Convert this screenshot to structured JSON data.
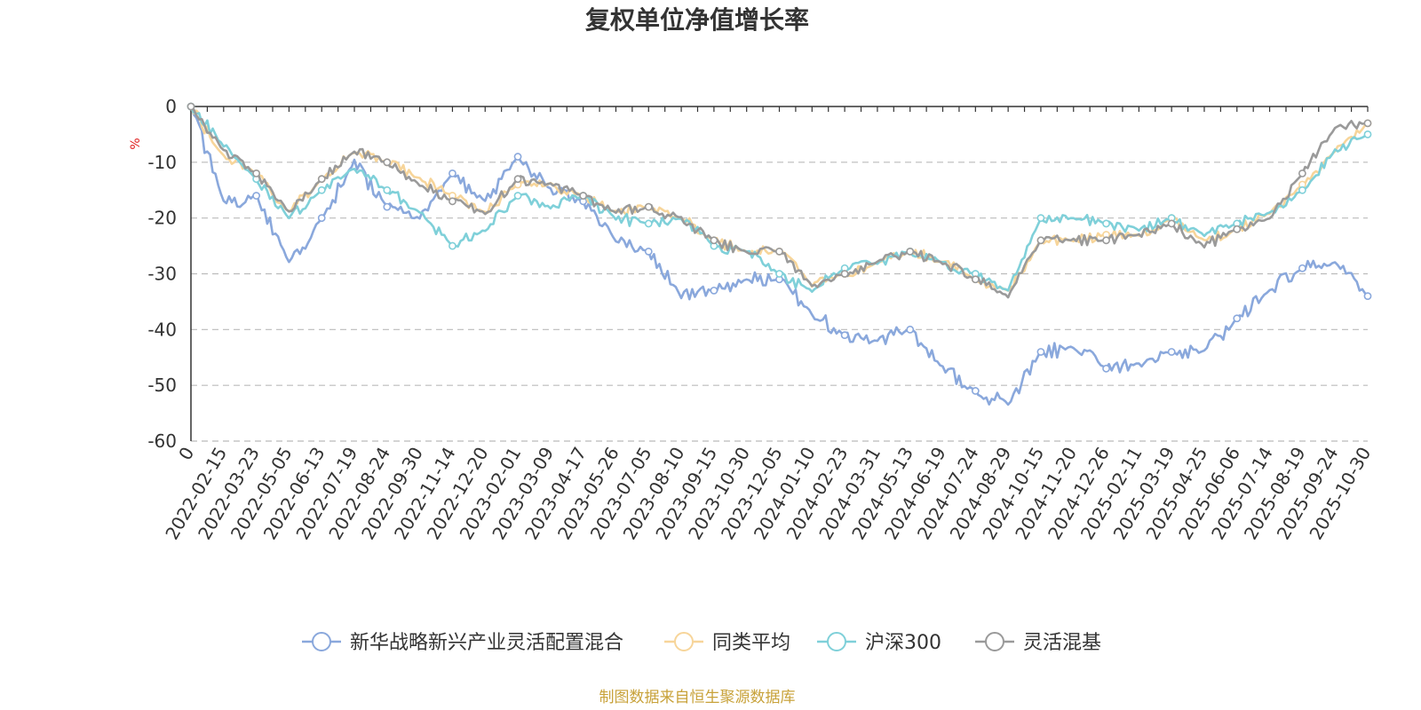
{
  "chart_data": {
    "type": "line",
    "title": "复权单位净值增长率",
    "ylabel": "%",
    "ylim": [
      -60,
      0
    ],
    "yticks": [
      0,
      -10,
      -20,
      -30,
      -40,
      -50,
      -60
    ],
    "categories": [
      "0",
      "2022-02-15",
      "2022-03-23",
      "2022-05-05",
      "2022-06-13",
      "2022-07-19",
      "2022-08-24",
      "2022-09-30",
      "2022-11-14",
      "2022-12-20",
      "2023-02-01",
      "2023-03-09",
      "2023-04-17",
      "2023-05-26",
      "2023-07-05",
      "2023-08-10",
      "2023-09-15",
      "2023-10-30",
      "2023-12-05",
      "2024-01-10",
      "2024-02-23",
      "2024-03-31",
      "2024-05-13",
      "2024-06-19",
      "2024-07-24",
      "2024-08-29",
      "2024-10-15",
      "2024-11-20",
      "2024-12-26",
      "2025-02-11",
      "2025-03-19",
      "2025-04-25",
      "2025-06-06",
      "2025-07-14",
      "2025-08-19",
      "2025-09-24",
      "2025-10-30"
    ],
    "legend_position": "bottom",
    "grid": true,
    "series": [
      {
        "name": "新华战略新兴产业灵活配置混合",
        "color": "#8aa8dc",
        "values": [
          0,
          -17,
          -16,
          -28,
          -20,
          -10,
          -18,
          -20,
          -12,
          -17,
          -9,
          -15,
          -17,
          -24,
          -26,
          -34,
          -33,
          -31,
          -31,
          -37,
          -41,
          -42,
          -40,
          -47,
          -51,
          -53,
          -44,
          -43,
          -47,
          -46,
          -44,
          -44,
          -38,
          -33,
          -29,
          -28,
          -34
        ]
      },
      {
        "name": "同类平均",
        "color": "#f7d59a",
        "values": [
          0,
          -9,
          -12,
          -19,
          -13,
          -8,
          -10,
          -13,
          -16,
          -19,
          -14,
          -14,
          -16,
          -19,
          -18,
          -20,
          -24,
          -26,
          -26,
          -32,
          -30,
          -28,
          -26,
          -28,
          -31,
          -33,
          -24,
          -24,
          -23,
          -23,
          -20,
          -24,
          -22,
          -19,
          -14,
          -8,
          -3
        ]
      },
      {
        "name": "沪深300",
        "color": "#7fd0d9",
        "values": [
          0,
          -7,
          -13,
          -20,
          -15,
          -11,
          -15,
          -19,
          -25,
          -22,
          -16,
          -18,
          -16,
          -20,
          -21,
          -20,
          -25,
          -26,
          -30,
          -33,
          -29,
          -28,
          -26,
          -28,
          -30,
          -33,
          -20,
          -20,
          -21,
          -22,
          -20,
          -23,
          -21,
          -19,
          -15,
          -8,
          -5
        ]
      },
      {
        "name": "灵活混基",
        "color": "#9a9a9a",
        "values": [
          0,
          -8,
          -12,
          -19,
          -13,
          -8,
          -10,
          -14,
          -17,
          -19,
          -13,
          -14,
          -16,
          -19,
          -18,
          -20,
          -24,
          -26,
          -26,
          -32,
          -30,
          -28,
          -26,
          -28,
          -31,
          -34,
          -24,
          -24,
          -24,
          -23,
          -21,
          -25,
          -22,
          -20,
          -12,
          -4,
          -3
        ]
      }
    ]
  },
  "footer": {
    "source_text": "制图数据来自恒生聚源数据库",
    "source_color": "#c8a23a"
  },
  "unit_color": "#e02020",
  "axis_color": "#333333",
  "grid_color": "#bbbbbb"
}
